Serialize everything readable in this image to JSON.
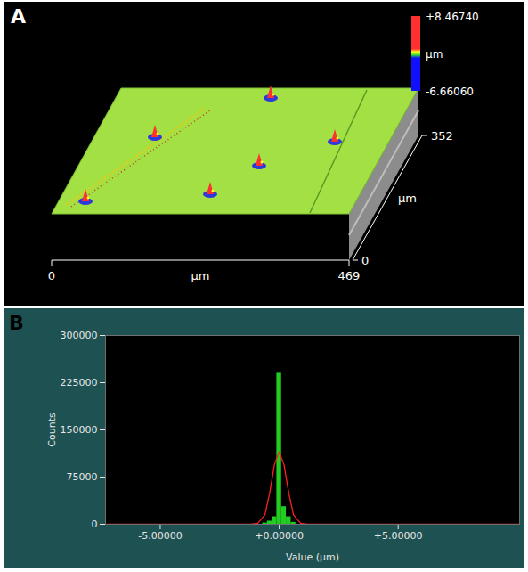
{
  "chart_data": [
    {
      "type": "surface",
      "panel": "A",
      "color": "#a2e044",
      "xlabel": "µm",
      "ylabel": "µm",
      "xlim": [
        0,
        469
      ],
      "xticks": [
        0,
        469
      ],
      "ylim": [
        0,
        352
      ],
      "yticks": [
        0,
        352
      ],
      "colorbar": {
        "label": "µm",
        "range": [
          -6.6606,
          8.4674
        ],
        "ticks": [
          {
            "value": 8.4674,
            "label": "+8.46740"
          },
          {
            "value": -6.6606,
            "label": "-6.66060"
          }
        ],
        "colors": [
          "#1010ff",
          "#30e030",
          "#ffff20",
          "#ff3030"
        ]
      }
    },
    {
      "type": "histogram",
      "panel": "B",
      "xlabel": "Value (µm)",
      "ylabel": "Counts",
      "color": "#22cc22",
      "bins": [
        -0.7,
        -0.5,
        -0.3,
        -0.1,
        0.1,
        0.3,
        0.5,
        0.7
      ],
      "counts": [
        2000,
        5000,
        12000,
        240000,
        28000,
        12000,
        3000
      ],
      "xlim": [
        -7.3,
        10.1
      ],
      "xticks": [
        {
          "value": -5,
          "label": "-5.00000"
        },
        {
          "value": 0,
          "label": "+0.00000"
        },
        {
          "value": 5,
          "label": "+5.00000"
        }
      ],
      "ylim": [
        0,
        300000
      ],
      "yticks": [
        0,
        75000,
        150000,
        225000,
        300000
      ],
      "fit": {
        "type": "line",
        "color": "#ff2020",
        "x": [
          -7.3,
          -1.2,
          -0.9,
          -0.6,
          -0.4,
          -0.2,
          0,
          0.2,
          0.4,
          0.6,
          0.9,
          1.2,
          10.1
        ],
        "values": [
          0,
          0,
          1500,
          15000,
          50000,
          95000,
          115000,
          95000,
          50000,
          15000,
          1500,
          0,
          0
        ]
      }
    }
  ]
}
